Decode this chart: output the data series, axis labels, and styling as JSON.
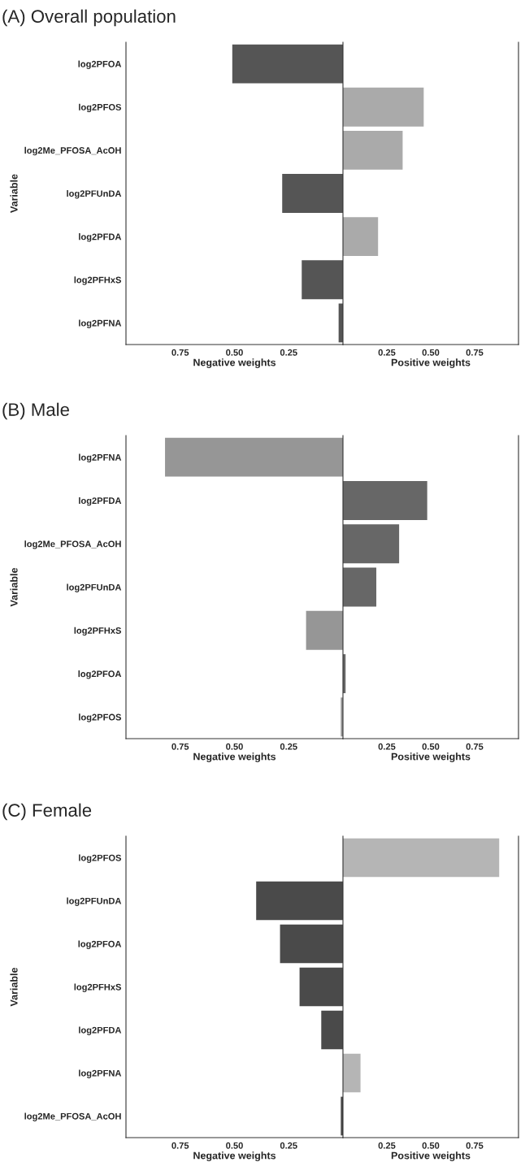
{
  "chart_data": [
    {
      "type": "bar",
      "orientation": "horizontal",
      "title": "(A) Overall population",
      "ylabel": "Variable",
      "xlabel": "Negative weights",
      "categories": [
        "log2PFOA",
        "log2PFOS",
        "log2Me_PFOSA_AcOH",
        "log2PFUnDA",
        "log2PFDA",
        "log2PFHxS",
        "log2PFNA"
      ],
      "values": [
        0.51,
        null,
        null,
        0.28,
        null,
        0.19,
        0.02
      ],
      "color": "#555555",
      "xlim": [
        1.0,
        0
      ],
      "xticks": [
        {
          "value": 0.75,
          "label": "0.75"
        },
        {
          "value": 0.5,
          "label": "0.50"
        },
        {
          "value": 0.25,
          "label": "0.25"
        }
      ],
      "grid": false
    },
    {
      "type": "bar",
      "orientation": "horizontal",
      "xlabel": "Positive weights",
      "tick_labels": "x",
      "categories": [
        null,
        null,
        null,
        null,
        null,
        null,
        null
      ],
      "values": [
        null,
        0.46,
        0.34,
        null,
        0.2,
        null,
        null
      ],
      "color": "#aaaaaa",
      "xlim": [
        0,
        1.0
      ],
      "xticks": [
        {
          "value": 0.25,
          "label": "0.25"
        },
        {
          "value": 0.5,
          "label": "0.50"
        },
        {
          "value": 0.75,
          "label": "0.75"
        }
      ],
      "grid": false
    },
    {
      "type": "bar",
      "orientation": "horizontal",
      "title": "(B) Male",
      "ylabel": "Variable",
      "xlabel": "Negative weights",
      "categories": [
        "log2PFNA",
        "log2PFDA",
        "log2Me_PFOSA_AcOH",
        "log2PFUnDA",
        "log2PFHxS",
        "log2PFOA",
        "log2PFOS"
      ],
      "values": [
        0.82,
        null,
        null,
        null,
        0.17,
        null,
        0.01
      ],
      "color": "#969696",
      "xlim": [
        1.0,
        0
      ],
      "xticks": [
        {
          "value": 0.75,
          "label": "0.75"
        },
        {
          "value": 0.5,
          "label": "0.50"
        },
        {
          "value": 0.25,
          "label": "0.25"
        }
      ],
      "grid": false
    },
    {
      "type": "bar",
      "orientation": "horizontal",
      "xlabel": "Positive weights",
      "tick_labels": "x",
      "categories": [
        null,
        null,
        null,
        null,
        null,
        null,
        null
      ],
      "values": [
        null,
        0.48,
        0.32,
        0.19,
        null,
        0.015,
        null
      ],
      "color": "#676767",
      "xlim": [
        0,
        1.0
      ],
      "xticks": [
        {
          "value": 0.25,
          "label": "0.25"
        },
        {
          "value": 0.5,
          "label": "0.50"
        },
        {
          "value": 0.75,
          "label": "0.75"
        }
      ],
      "grid": false
    },
    {
      "type": "bar",
      "orientation": "horizontal",
      "title": "(C) Female",
      "ylabel": "Variable",
      "xlabel": "Negative weights",
      "categories": [
        "log2PFOS",
        "log2PFUnDA",
        "log2PFOA",
        "log2PFHxS",
        "log2PFDA",
        "log2PFNA",
        "log2Me_PFOSA_AcOH"
      ],
      "values": [
        null,
        0.4,
        0.29,
        0.2,
        0.1,
        null,
        0.01
      ],
      "color": "#4a4a4a",
      "xlim": [
        1.0,
        0
      ],
      "xticks": [
        {
          "value": 0.75,
          "label": "0.75"
        },
        {
          "value": 0.5,
          "label": "0.50"
        },
        {
          "value": 0.25,
          "label": "0.25"
        }
      ],
      "grid": false
    },
    {
      "type": "bar",
      "orientation": "horizontal",
      "xlabel": "Positive weights",
      "tick_labels": "x",
      "categories": [
        null,
        null,
        null,
        null,
        null,
        null,
        null
      ],
      "values": [
        0.89,
        null,
        null,
        null,
        null,
        0.1,
        null
      ],
      "color": "#b5b5b5",
      "xlim": [
        0,
        1.0
      ],
      "xticks": [
        {
          "value": 0.25,
          "label": "0.25"
        },
        {
          "value": 0.5,
          "label": "0.50"
        },
        {
          "value": 0.75,
          "label": "0.75"
        }
      ],
      "grid": false
    }
  ]
}
